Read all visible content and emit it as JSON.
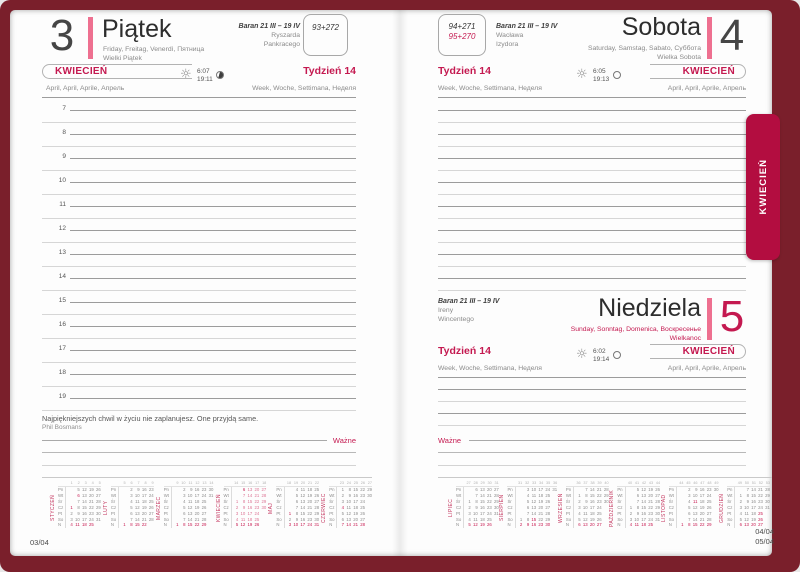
{
  "accent_color": "#c41950",
  "cover_color": "#7a1f2b",
  "side_tab": "KWIECIEŃ",
  "left": {
    "day_number": "3",
    "day_name": "Piątek",
    "day_langs": "Friday, Freitag, Venerdì, Пятница",
    "day_note": "Wielki Piątek",
    "zodiac": "Baran 21 III – 19 IV",
    "nameday1": "Ryszarda",
    "nameday2": "Pankracego",
    "day_of_year": "93+272",
    "month_label": "KWIECIEŃ",
    "month_langs": "April, April, Aprile, Апрель",
    "week_label": "Tydzień 14",
    "week_langs": "Week, Woche, Settimana, Неделя",
    "sunrise": "6:07",
    "sunset": "19:11",
    "hours": [
      "7",
      "8",
      "9",
      "10",
      "11",
      "12",
      "13",
      "14",
      "15",
      "16",
      "17",
      "18",
      "19"
    ],
    "quote": "Najpiękniejszych chwil w życiu nie zaplanujesz. One przyjdą same.",
    "quote_author": "Phil Bosmans",
    "important": "Ważne",
    "page_num": "03/04"
  },
  "right": {
    "day_of_year": "94+271",
    "day_of_year2": "95+270",
    "sat": {
      "day_number": "4",
      "day_name": "Sobota",
      "day_langs": "Saturday, Samstag, Sabato, Суббота",
      "day_note": "Wielka Sobota",
      "zodiac": "Baran 21 III – 19 IV",
      "nameday1": "Wacława",
      "nameday2": "Izydora",
      "month_label": "KWIECIEŃ",
      "month_langs": "April, April, Aprile, Апрель",
      "week_label": "Tydzień 14",
      "week_langs": "Week, Woche, Settimana, Неделя",
      "sunrise": "6:05",
      "sunset": "19:13"
    },
    "sun": {
      "day_number": "5",
      "day_name": "Niedziela",
      "day_langs": "Sunday, Sonntag, Domenica, Воскресенье",
      "day_note": "Wielkanoc",
      "zodiac": "Baran 21 III – 19 IV",
      "nameday1": "Ireny",
      "nameday2": "Wincentego",
      "month_label": "KWIECIEŃ",
      "month_langs": "April, April, Aprile, Апрель",
      "week_label": "Tydzień 14",
      "week_langs": "Week, Woche, Settimana, Неделя",
      "sunrise": "6:02",
      "sunset": "19:14"
    },
    "important": "Ważne",
    "page_num": "04/04",
    "page_num_next": "05/04"
  },
  "calendars": {
    "day_labels": [
      "Pn",
      "Wt",
      "Śr",
      "Cz",
      "Pt",
      "So",
      "N"
    ],
    "left": [
      {
        "name": "STYCZEŃ",
        "weeks": [
          "1",
          "2",
          "3",
          "4",
          "5"
        ],
        "red": [
          1,
          6,
          4,
          11,
          18,
          25
        ],
        "rows": [
          [
            "",
            "5",
            "12",
            "19",
            "26"
          ],
          [
            "",
            "6",
            "13",
            "20",
            "27"
          ],
          [
            "",
            "7",
            "14",
            "21",
            "28"
          ],
          [
            "1",
            "8",
            "15",
            "22",
            "29"
          ],
          [
            "2",
            "9",
            "16",
            "23",
            "30"
          ],
          [
            "3",
            "10",
            "17",
            "24",
            "31"
          ],
          [
            "4",
            "11",
            "18",
            "25",
            ""
          ]
        ]
      },
      {
        "name": "LUTY",
        "weeks": [
          "5",
          "6",
          "7",
          "8",
          "9"
        ],
        "red": [
          1,
          8,
          15,
          22
        ],
        "rows": [
          [
            "",
            "2",
            "9",
            "16",
            "23"
          ],
          [
            "",
            "3",
            "10",
            "17",
            "24"
          ],
          [
            "",
            "4",
            "11",
            "18",
            "25"
          ],
          [
            "",
            "5",
            "12",
            "19",
            "26"
          ],
          [
            "",
            "6",
            "13",
            "20",
            "27"
          ],
          [
            "",
            "7",
            "14",
            "21",
            "28"
          ],
          [
            "1",
            "8",
            "15",
            "22",
            ""
          ]
        ]
      },
      {
        "name": "MARZEC",
        "weeks": [
          "9",
          "10",
          "11",
          "12",
          "13",
          "14"
        ],
        "red": [
          1,
          8,
          15,
          22,
          29
        ],
        "rows": [
          [
            "",
            "2",
            "9",
            "16",
            "23",
            "30"
          ],
          [
            "",
            "3",
            "10",
            "17",
            "24",
            "31"
          ],
          [
            "",
            "4",
            "11",
            "18",
            "25",
            ""
          ],
          [
            "",
            "5",
            "12",
            "19",
            "26",
            ""
          ],
          [
            "",
            "6",
            "13",
            "20",
            "27",
            ""
          ],
          [
            "",
            "7",
            "14",
            "21",
            "28",
            ""
          ],
          [
            "1",
            "8",
            "15",
            "22",
            "29",
            ""
          ]
        ]
      },
      {
        "name": "KWIECIEŃ",
        "weeks": [
          "14",
          "15",
          "16",
          "17",
          "18"
        ],
        "red": [
          5,
          6,
          12,
          19,
          26
        ],
        "current": true,
        "rows": [
          [
            "",
            "6",
            "13",
            "20",
            "27"
          ],
          [
            "",
            "7",
            "14",
            "21",
            "28"
          ],
          [
            "1",
            "8",
            "15",
            "22",
            "29"
          ],
          [
            "2",
            "9",
            "16",
            "23",
            "30"
          ],
          [
            "3",
            "10",
            "17",
            "24",
            ""
          ],
          [
            "4",
            "11",
            "18",
            "25",
            ""
          ],
          [
            "5",
            "12",
            "19",
            "26",
            ""
          ]
        ]
      },
      {
        "name": "MAJ",
        "weeks": [
          "18",
          "19",
          "20",
          "21",
          "22"
        ],
        "red": [
          1,
          3,
          10,
          17,
          24,
          31
        ],
        "rows": [
          [
            "",
            "4",
            "11",
            "18",
            "25"
          ],
          [
            "",
            "5",
            "12",
            "19",
            "26"
          ],
          [
            "",
            "6",
            "13",
            "20",
            "27"
          ],
          [
            "",
            "7",
            "14",
            "21",
            "28"
          ],
          [
            "1",
            "8",
            "15",
            "22",
            "29"
          ],
          [
            "2",
            "9",
            "16",
            "23",
            "30"
          ],
          [
            "3",
            "10",
            "17",
            "24",
            "31"
          ]
        ]
      },
      {
        "name": "CZERWIEC",
        "weeks": [
          "23",
          "24",
          "25",
          "26",
          "27"
        ],
        "red": [
          4,
          7,
          14,
          21,
          28
        ],
        "rows": [
          [
            "1",
            "8",
            "15",
            "22",
            "29"
          ],
          [
            "2",
            "9",
            "16",
            "23",
            "30"
          ],
          [
            "3",
            "10",
            "17",
            "24",
            ""
          ],
          [
            "4",
            "11",
            "18",
            "25",
            ""
          ],
          [
            "5",
            "12",
            "19",
            "26",
            ""
          ],
          [
            "6",
            "13",
            "20",
            "27",
            ""
          ],
          [
            "7",
            "14",
            "21",
            "28",
            ""
          ]
        ]
      }
    ],
    "right": [
      {
        "name": "LIPIEC",
        "weeks": [
          "27",
          "28",
          "29",
          "30",
          "31"
        ],
        "red": [
          5,
          12,
          19,
          26
        ],
        "rows": [
          [
            "",
            "6",
            "13",
            "20",
            "27"
          ],
          [
            "",
            "7",
            "14",
            "21",
            "28"
          ],
          [
            "1",
            "8",
            "15",
            "22",
            "29"
          ],
          [
            "2",
            "9",
            "16",
            "23",
            "30"
          ],
          [
            "3",
            "10",
            "17",
            "24",
            "31"
          ],
          [
            "4",
            "11",
            "18",
            "25",
            ""
          ],
          [
            "5",
            "12",
            "19",
            "26",
            ""
          ]
        ]
      },
      {
        "name": "SIERPIEŃ",
        "weeks": [
          "31",
          "32",
          "33",
          "34",
          "35",
          "36"
        ],
        "red": [
          2,
          9,
          15,
          16,
          23,
          30
        ],
        "rows": [
          [
            "",
            "3",
            "10",
            "17",
            "24",
            "31"
          ],
          [
            "",
            "4",
            "11",
            "18",
            "25",
            ""
          ],
          [
            "",
            "5",
            "12",
            "19",
            "26",
            ""
          ],
          [
            "",
            "6",
            "13",
            "20",
            "27",
            ""
          ],
          [
            "",
            "7",
            "14",
            "21",
            "28",
            ""
          ],
          [
            "1",
            "8",
            "15",
            "22",
            "29",
            ""
          ],
          [
            "2",
            "9",
            "16",
            "23",
            "30",
            ""
          ]
        ]
      },
      {
        "name": "WRZESIEŃ",
        "weeks": [
          "36",
          "37",
          "38",
          "39",
          "40"
        ],
        "red": [
          6,
          13,
          20,
          27
        ],
        "rows": [
          [
            "",
            "7",
            "14",
            "21",
            "28"
          ],
          [
            "1",
            "8",
            "15",
            "22",
            "29"
          ],
          [
            "2",
            "9",
            "16",
            "23",
            "30"
          ],
          [
            "3",
            "10",
            "17",
            "24",
            ""
          ],
          [
            "4",
            "11",
            "18",
            "25",
            ""
          ],
          [
            "5",
            "12",
            "19",
            "26",
            ""
          ],
          [
            "6",
            "13",
            "20",
            "27",
            ""
          ]
        ]
      },
      {
        "name": "PAŹDZIERNIK",
        "weeks": [
          "40",
          "41",
          "42",
          "43",
          "44"
        ],
        "red": [
          4,
          11,
          18,
          25
        ],
        "rows": [
          [
            "",
            "5",
            "12",
            "19",
            "26"
          ],
          [
            "",
            "6",
            "13",
            "20",
            "27"
          ],
          [
            "",
            "7",
            "14",
            "21",
            "28"
          ],
          [
            "1",
            "8",
            "15",
            "22",
            "29"
          ],
          [
            "2",
            "9",
            "16",
            "23",
            "30"
          ],
          [
            "3",
            "10",
            "17",
            "24",
            "31"
          ],
          [
            "4",
            "11",
            "18",
            "25",
            ""
          ]
        ]
      },
      {
        "name": "LISTOPAD",
        "weeks": [
          "44",
          "45",
          "46",
          "47",
          "48",
          "49"
        ],
        "red": [
          1,
          8,
          11,
          15,
          22,
          29
        ],
        "rows": [
          [
            "",
            "2",
            "9",
            "16",
            "23",
            "30"
          ],
          [
            "",
            "3",
            "10",
            "17",
            "24",
            ""
          ],
          [
            "",
            "4",
            "11",
            "18",
            "25",
            ""
          ],
          [
            "",
            "5",
            "12",
            "19",
            "26",
            ""
          ],
          [
            "",
            "6",
            "13",
            "20",
            "27",
            ""
          ],
          [
            "",
            "7",
            "14",
            "21",
            "28",
            ""
          ],
          [
            "1",
            "8",
            "15",
            "22",
            "29",
            ""
          ]
        ]
      },
      {
        "name": "GRUDZIEŃ",
        "weeks": [
          "49",
          "50",
          "51",
          "52",
          "53"
        ],
        "red": [
          6,
          13,
          20,
          25,
          26,
          27
        ],
        "rows": [
          [
            "",
            "7",
            "14",
            "21",
            "28"
          ],
          [
            "1",
            "8",
            "15",
            "22",
            "29"
          ],
          [
            "2",
            "9",
            "16",
            "23",
            "30"
          ],
          [
            "3",
            "10",
            "17",
            "24",
            "31"
          ],
          [
            "4",
            "11",
            "18",
            "25",
            ""
          ],
          [
            "5",
            "12",
            "19",
            "26",
            ""
          ],
          [
            "6",
            "13",
            "20",
            "27",
            ""
          ]
        ]
      }
    ]
  }
}
